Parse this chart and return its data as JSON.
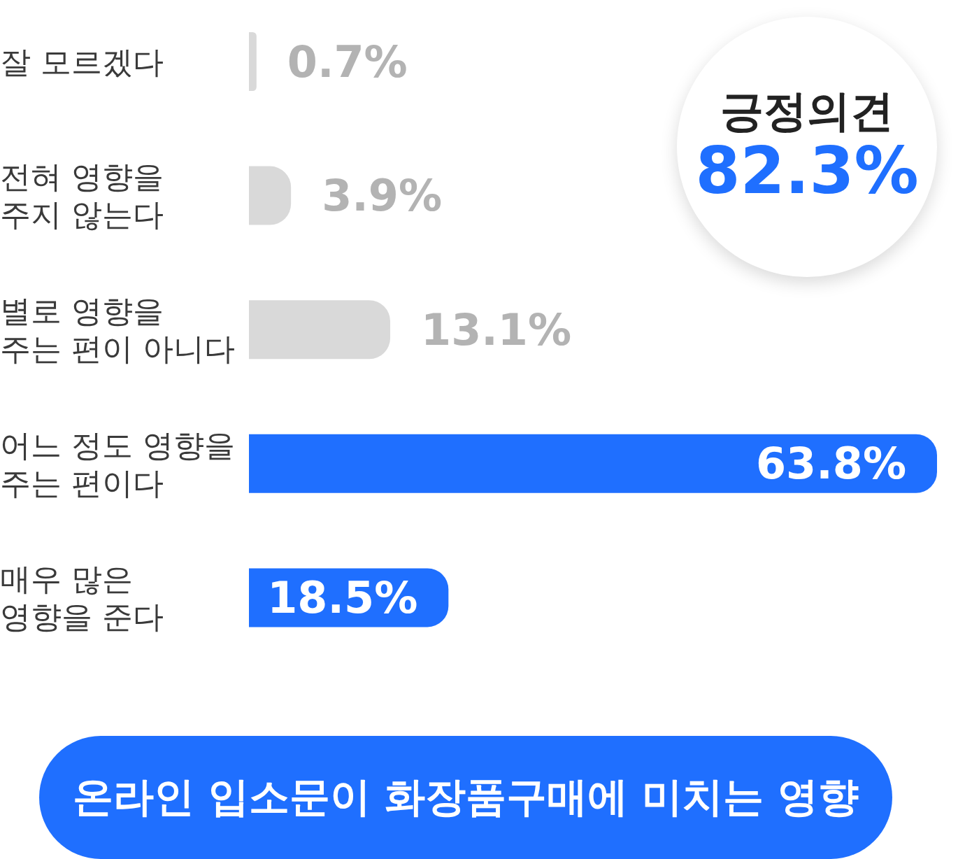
{
  "chart_data": {
    "type": "bar",
    "orientation": "horizontal",
    "title": "온라인 입소문이 화장품구매에 미치는 영향",
    "categories": [
      "잘 모르겠다",
      "전혀 영향을 주지 않는다",
      "별로 영향을 주는 편이 아니다",
      "어느 정도 영향을 주는 편이다",
      "매우 많은 영향을 준다"
    ],
    "values": [
      0.7,
      3.9,
      13.1,
      63.8,
      18.5
    ],
    "colors": [
      "#d9d9d9",
      "#d9d9d9",
      "#d9d9d9",
      "#1f6fff",
      "#1f6fff"
    ],
    "value_labels": [
      "0.7%",
      "3.9%",
      "13.1%",
      "63.8%",
      "18.5%"
    ],
    "annotations": [
      "긍정의견",
      "82.3%"
    ],
    "grid": false,
    "legend": false
  }
}
